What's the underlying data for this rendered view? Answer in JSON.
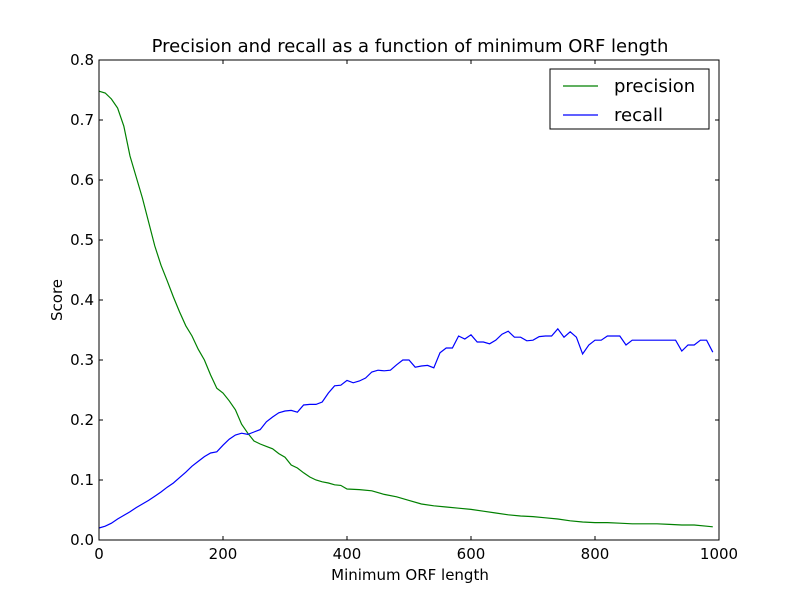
{
  "chart_data": {
    "type": "line",
    "title": "Precision and recall as a function of minimum ORF length",
    "xlabel": "Minimum ORF length",
    "ylabel": "Score",
    "xlim": [
      0,
      1000
    ],
    "ylim": [
      0.0,
      0.8
    ],
    "x_ticks": [
      "0",
      "200",
      "400",
      "600",
      "800",
      "1000"
    ],
    "y_ticks": [
      "0.0",
      "0.1",
      "0.2",
      "0.3",
      "0.4",
      "0.5",
      "0.6",
      "0.7",
      "0.8"
    ],
    "x_tick_values": [
      0,
      200,
      400,
      600,
      800,
      1000
    ],
    "y_tick_values": [
      0.0,
      0.1,
      0.2,
      0.3,
      0.4,
      0.5,
      0.6,
      0.7,
      0.8
    ],
    "grid": false,
    "legend_position": "top-right",
    "series": [
      {
        "name": "precision",
        "color": "#008000",
        "x": [
          0,
          10,
          20,
          30,
          40,
          50,
          60,
          70,
          80,
          90,
          100,
          110,
          120,
          130,
          140,
          150,
          160,
          170,
          180,
          190,
          200,
          210,
          220,
          230,
          240,
          250,
          260,
          270,
          280,
          290,
          300,
          310,
          320,
          330,
          340,
          350,
          360,
          370,
          380,
          390,
          400,
          420,
          440,
          460,
          480,
          500,
          520,
          540,
          560,
          580,
          600,
          620,
          640,
          660,
          680,
          700,
          720,
          740,
          760,
          780,
          800,
          820,
          840,
          860,
          880,
          900,
          920,
          940,
          960,
          980,
          990
        ],
        "values": [
          0.748,
          0.745,
          0.735,
          0.72,
          0.69,
          0.64,
          0.605,
          0.57,
          0.53,
          0.49,
          0.458,
          0.432,
          0.405,
          0.38,
          0.357,
          0.34,
          0.318,
          0.3,
          0.275,
          0.253,
          0.245,
          0.232,
          0.217,
          0.193,
          0.178,
          0.165,
          0.16,
          0.156,
          0.152,
          0.144,
          0.138,
          0.125,
          0.12,
          0.112,
          0.105,
          0.1,
          0.097,
          0.095,
          0.092,
          0.091,
          0.085,
          0.084,
          0.082,
          0.076,
          0.072,
          0.066,
          0.06,
          0.057,
          0.055,
          0.053,
          0.051,
          0.048,
          0.045,
          0.042,
          0.04,
          0.039,
          0.037,
          0.035,
          0.032,
          0.03,
          0.029,
          0.029,
          0.028,
          0.027,
          0.027,
          0.027,
          0.026,
          0.025,
          0.025,
          0.023,
          0.022
        ]
      },
      {
        "name": "recall",
        "color": "#0000ff",
        "x": [
          0,
          10,
          20,
          30,
          40,
          50,
          60,
          70,
          80,
          90,
          100,
          110,
          120,
          130,
          140,
          150,
          160,
          170,
          180,
          190,
          200,
          210,
          220,
          230,
          240,
          250,
          260,
          270,
          280,
          290,
          300,
          310,
          320,
          330,
          340,
          350,
          360,
          370,
          380,
          390,
          400,
          410,
          420,
          430,
          440,
          450,
          460,
          470,
          480,
          490,
          500,
          510,
          520,
          530,
          540,
          550,
          560,
          570,
          580,
          590,
          600,
          610,
          620,
          630,
          640,
          650,
          660,
          670,
          680,
          690,
          700,
          710,
          720,
          730,
          740,
          750,
          760,
          770,
          780,
          790,
          800,
          810,
          820,
          830,
          840,
          850,
          860,
          870,
          880,
          890,
          900,
          910,
          920,
          930,
          940,
          950,
          960,
          970,
          980,
          990
        ],
        "values": [
          0.02,
          0.023,
          0.028,
          0.035,
          0.041,
          0.047,
          0.054,
          0.06,
          0.066,
          0.073,
          0.08,
          0.088,
          0.095,
          0.104,
          0.113,
          0.123,
          0.131,
          0.139,
          0.145,
          0.147,
          0.158,
          0.168,
          0.175,
          0.178,
          0.176,
          0.18,
          0.184,
          0.197,
          0.205,
          0.212,
          0.215,
          0.216,
          0.213,
          0.225,
          0.226,
          0.226,
          0.23,
          0.245,
          0.257,
          0.258,
          0.266,
          0.262,
          0.265,
          0.27,
          0.28,
          0.283,
          0.282,
          0.283,
          0.292,
          0.3,
          0.3,
          0.288,
          0.29,
          0.291,
          0.287,
          0.312,
          0.32,
          0.32,
          0.34,
          0.335,
          0.342,
          0.33,
          0.33,
          0.327,
          0.333,
          0.343,
          0.348,
          0.338,
          0.338,
          0.332,
          0.333,
          0.339,
          0.34,
          0.34,
          0.352,
          0.338,
          0.347,
          0.338,
          0.31,
          0.325,
          0.333,
          0.333,
          0.34,
          0.34,
          0.34,
          0.325,
          0.333,
          0.333,
          0.333,
          0.333,
          0.333,
          0.333,
          0.333,
          0.333,
          0.315,
          0.325,
          0.325,
          0.333,
          0.333,
          0.313
        ]
      }
    ]
  }
}
